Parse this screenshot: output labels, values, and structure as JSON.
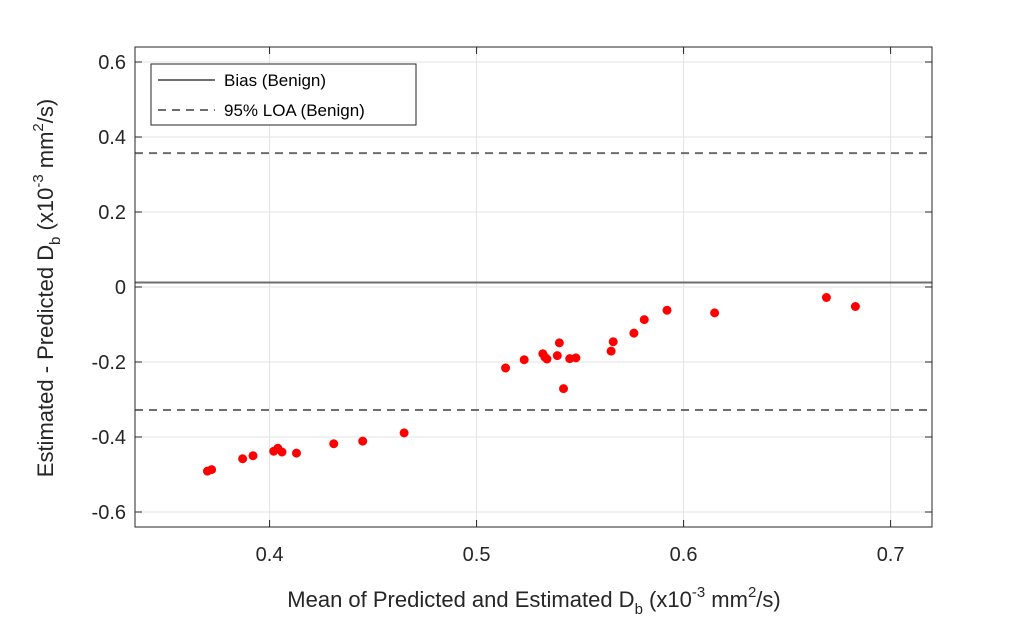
{
  "chart_data": {
    "type": "scatter",
    "xlabel": {
      "pre": "Mean of Predicted and Estimated D",
      "sub": "b",
      "mid1": " (x10",
      "sup1": "-3",
      "mid2": " mm",
      "sup2": "2",
      "post": "/s)"
    },
    "ylabel": {
      "pre": "Estimated - Predicted D",
      "sub": "b",
      "mid1": " (x10",
      "sup1": "-3",
      "mid2": " mm",
      "sup2": "2",
      "post": "/s)"
    },
    "xlim": [
      0.335,
      0.72
    ],
    "ylim": [
      -0.64,
      0.64
    ],
    "x_ticks": [
      0.4,
      0.5,
      0.6,
      0.7
    ],
    "x_tick_labels": [
      "0.4",
      "0.5",
      "0.6",
      "0.7"
    ],
    "y_ticks": [
      -0.6,
      -0.4,
      -0.2,
      0,
      0.2,
      0.4,
      0.6
    ],
    "y_tick_labels": [
      "-0.6",
      "-0.4",
      "-0.2",
      "0",
      "0.2",
      "0.4",
      "0.6"
    ],
    "grid": true,
    "legend_position": "top-left",
    "legend": [
      {
        "label": "Bias (Benign)",
        "style": "solid",
        "color": "#6e6e6e"
      },
      {
        "label": "95% LOA (Benign)",
        "style": "dashed",
        "color": "#6e6e6e"
      }
    ],
    "bias": 0.012,
    "loa_upper": 0.357,
    "loa_lower": -0.328,
    "point_color": "#ff0000",
    "points": [
      {
        "x": 0.37,
        "y": -0.491
      },
      {
        "x": 0.372,
        "y": -0.487
      },
      {
        "x": 0.387,
        "y": -0.458
      },
      {
        "x": 0.392,
        "y": -0.45
      },
      {
        "x": 0.402,
        "y": -0.438
      },
      {
        "x": 0.404,
        "y": -0.43
      },
      {
        "x": 0.406,
        "y": -0.44
      },
      {
        "x": 0.413,
        "y": -0.443
      },
      {
        "x": 0.431,
        "y": -0.418
      },
      {
        "x": 0.445,
        "y": -0.411
      },
      {
        "x": 0.465,
        "y": -0.389
      },
      {
        "x": 0.514,
        "y": -0.216
      },
      {
        "x": 0.523,
        "y": -0.194
      },
      {
        "x": 0.532,
        "y": -0.178
      },
      {
        "x": 0.533,
        "y": -0.187
      },
      {
        "x": 0.534,
        "y": -0.192
      },
      {
        "x": 0.539,
        "y": -0.183
      },
      {
        "x": 0.54,
        "y": -0.149
      },
      {
        "x": 0.542,
        "y": -0.271
      },
      {
        "x": 0.545,
        "y": -0.191
      },
      {
        "x": 0.548,
        "y": -0.189
      },
      {
        "x": 0.565,
        "y": -0.171
      },
      {
        "x": 0.566,
        "y": -0.146
      },
      {
        "x": 0.576,
        "y": -0.123
      },
      {
        "x": 0.581,
        "y": -0.087
      },
      {
        "x": 0.592,
        "y": -0.062
      },
      {
        "x": 0.615,
        "y": -0.069
      },
      {
        "x": 0.669,
        "y": -0.028
      },
      {
        "x": 0.683,
        "y": -0.052
      }
    ]
  }
}
